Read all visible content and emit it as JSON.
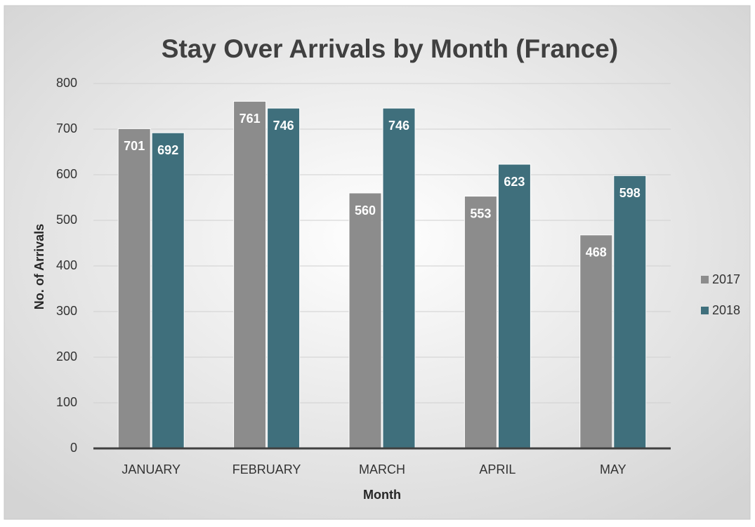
{
  "chart_data": {
    "type": "bar",
    "title": "Stay Over Arrivals by Month (France)",
    "x_label": "Month",
    "y_label": "No. of  Arrivals",
    "categories": [
      "JANUARY",
      "FEBRUARY",
      "MARCH",
      "APRIL",
      "MAY"
    ],
    "series": [
      {
        "name": "2017",
        "color": "#8c8c8c",
        "values": [
          701,
          761,
          560,
          553,
          468
        ]
      },
      {
        "name": "2018",
        "color": "#3f6f7c",
        "values": [
          692,
          746,
          746,
          623,
          598
        ]
      }
    ],
    "ylim": [
      0,
      800
    ],
    "yticks": [
      0,
      100,
      200,
      300,
      400,
      500,
      600,
      700,
      800
    ],
    "grid": true,
    "legend": "right",
    "data_labels": true
  }
}
